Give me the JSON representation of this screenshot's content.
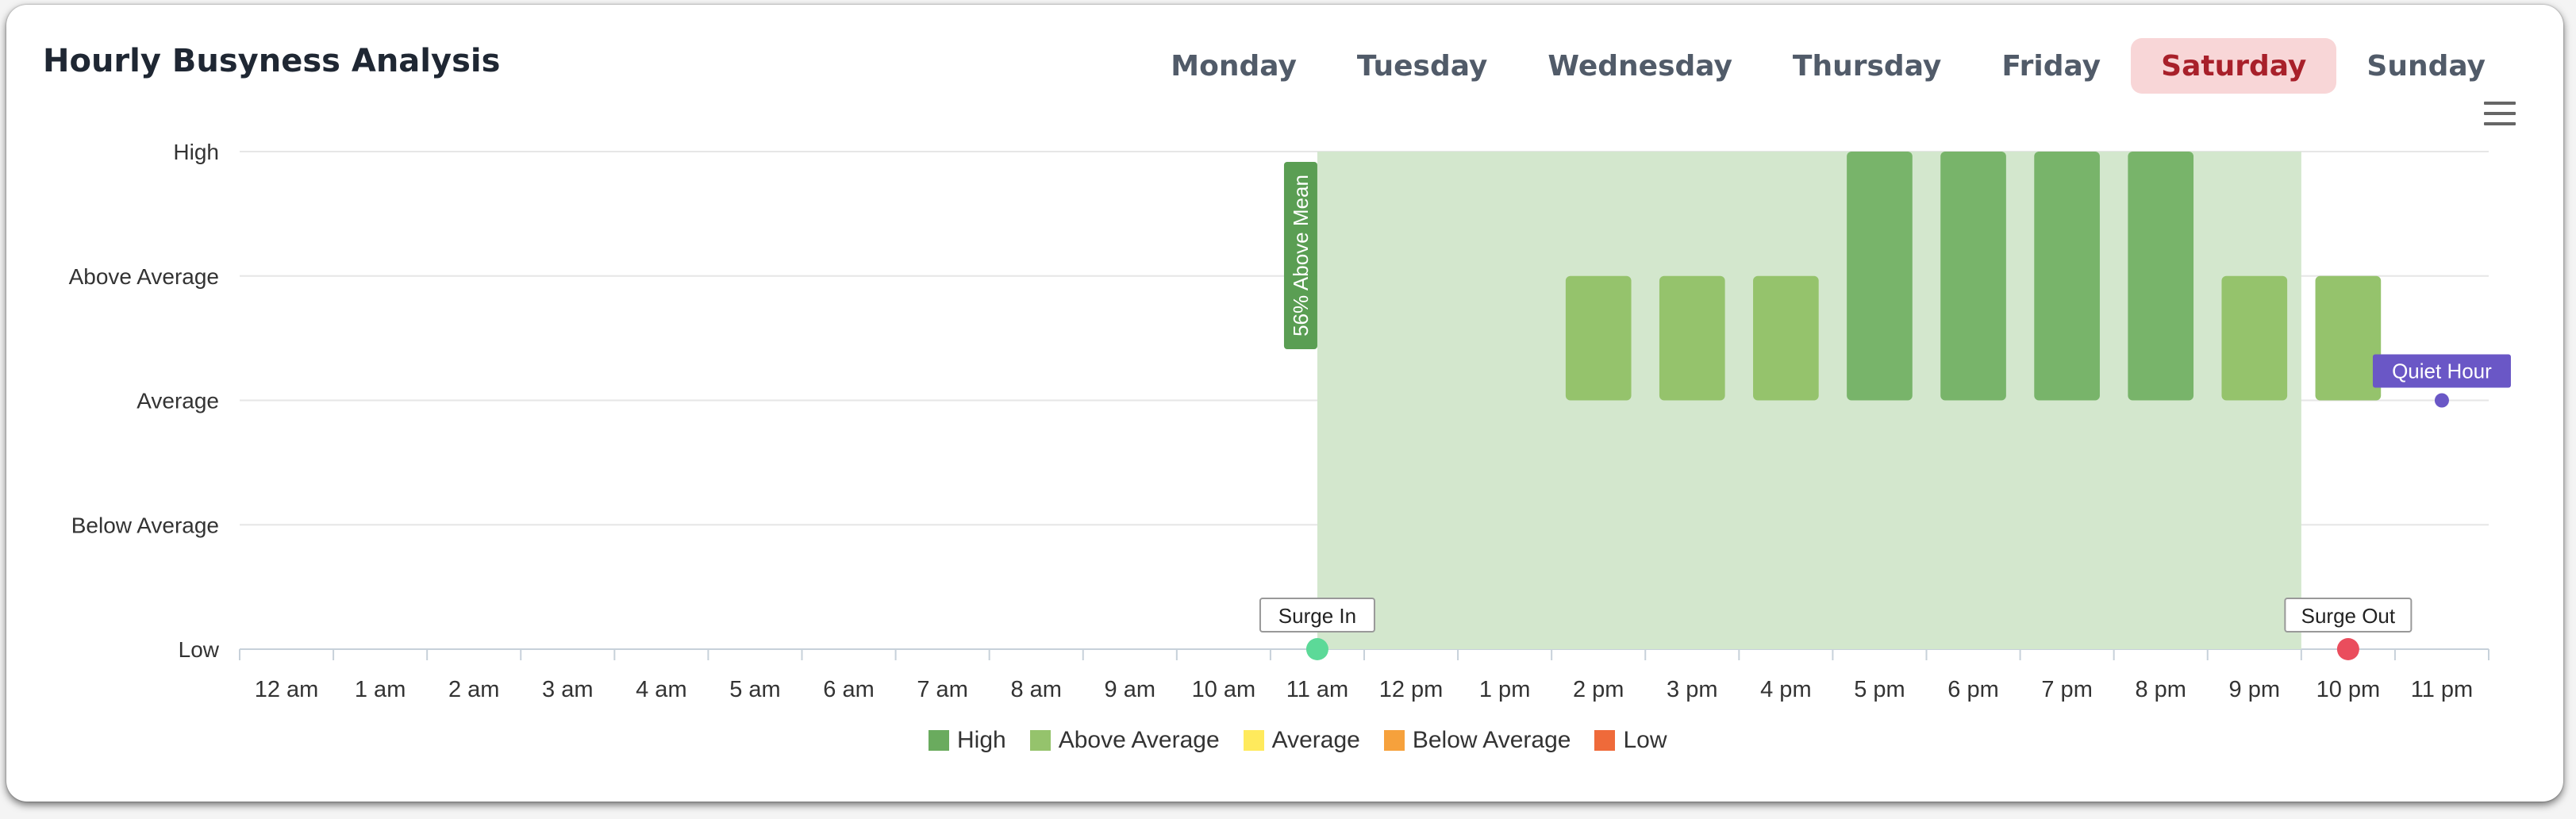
{
  "header": {
    "title": "Hourly Busyness Analysis"
  },
  "day_tabs": [
    {
      "label": "Monday",
      "active": false
    },
    {
      "label": "Tuesday",
      "active": false
    },
    {
      "label": "Wednesday",
      "active": false
    },
    {
      "label": "Thursday",
      "active": false
    },
    {
      "label": "Friday",
      "active": false
    },
    {
      "label": "Saturday",
      "active": true
    },
    {
      "label": "Sunday",
      "active": false
    }
  ],
  "menu_icon": "hamburger-menu-icon",
  "chart_data": {
    "type": "bar",
    "title": "Hourly Busyness Analysis",
    "xlabel": "",
    "ylabel": "",
    "categories": [
      "12 am",
      "1 am",
      "2 am",
      "3 am",
      "4 am",
      "5 am",
      "6 am",
      "7 am",
      "8 am",
      "9 am",
      "10 am",
      "11 am",
      "12 pm",
      "1 pm",
      "2 pm",
      "3 pm",
      "4 pm",
      "5 pm",
      "6 pm",
      "7 pm",
      "8 pm",
      "9 pm",
      "10 pm",
      "11 pm"
    ],
    "y_levels": [
      "Low",
      "Below Average",
      "Average",
      "Above Average",
      "High"
    ],
    "ylim": [
      0,
      4
    ],
    "values": [
      null,
      null,
      null,
      null,
      null,
      null,
      null,
      null,
      null,
      null,
      null,
      null,
      null,
      null,
      3,
      3,
      3,
      4,
      4,
      4,
      4,
      3,
      3,
      null
    ],
    "bar_base": 2,
    "value_levels": [
      null,
      null,
      null,
      null,
      null,
      null,
      null,
      null,
      null,
      null,
      null,
      null,
      null,
      null,
      "Above Average",
      "Above Average",
      "Above Average",
      "High",
      "High",
      "High",
      "High",
      "Above Average",
      "Above Average",
      null
    ],
    "level_colors": {
      "High": "#78b46a",
      "Above Average": "#95c36c",
      "Average": "#ffea5c",
      "Below Average": "#f6a13c",
      "Low": "#ef6a3a"
    },
    "surge_band": {
      "from": 11.5,
      "to": 22,
      "label": "56% Above Mean",
      "color": "#d3e7cd",
      "label_color": "#5a9e53"
    },
    "markers": [
      {
        "label": "Surge In",
        "x": 11,
        "y": 0,
        "color": "#5cd998"
      },
      {
        "label": "Surge Out",
        "x": 22,
        "y": 0,
        "color": "#ea4d5d"
      },
      {
        "label": "Quiet Hour",
        "x": 23,
        "y": 2,
        "color": "#6a57c6"
      }
    ],
    "legend": [
      {
        "label": "High",
        "color": "#6aab5e"
      },
      {
        "label": "Above Average",
        "color": "#95c36c"
      },
      {
        "label": "Average",
        "color": "#ffea5c"
      },
      {
        "label": "Below Average",
        "color": "#f6a13c"
      },
      {
        "label": "Low",
        "color": "#ef6a3a"
      }
    ],
    "grid": true
  }
}
